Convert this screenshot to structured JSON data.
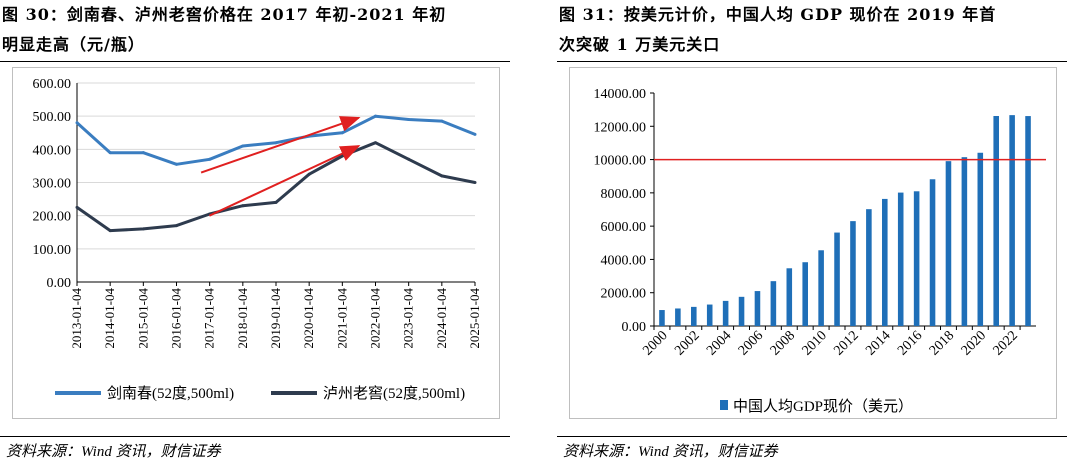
{
  "left_panel": {
    "title_line1": "图 30：剑南春、泸州老窖价格在 2017 年初-2021 年初",
    "title_line2": "明显走高（元/瓶）",
    "source": "资料来源：Wind 资讯，财信证券"
  },
  "right_panel": {
    "title_line1": "图 31：按美元计价，中国人均 GDP 现价在 2019 年首",
    "title_line2": "次突破 1 万美元关口",
    "source": "资料来源：Wind 资讯，财信证券"
  },
  "chart_data": [
    {
      "type": "line",
      "title": "",
      "ylim": [
        0,
        600
      ],
      "yticks": [
        "0.00",
        "100.00",
        "200.00",
        "300.00",
        "400.00",
        "500.00",
        "600.00"
      ],
      "x": [
        "2013-01-04",
        "2014-01-04",
        "2015-01-04",
        "2016-01-04",
        "2017-01-04",
        "2018-01-04",
        "2019-01-04",
        "2020-01-04",
        "2021-01-04",
        "2022-01-04",
        "2023-01-04",
        "2024-01-04",
        "2025-01-04"
      ],
      "grid": true,
      "legend_position": "bottom",
      "series": [
        {
          "name": "剑南春(52度,500ml)",
          "color": "#3a7dc0",
          "values": [
            480,
            390,
            390,
            355,
            370,
            410,
            420,
            440,
            450,
            500,
            490,
            485,
            445
          ]
        },
        {
          "name": "泸州老窖(52度,500ml)",
          "color": "#2e3b4e",
          "values": [
            225,
            155,
            160,
            170,
            205,
            230,
            240,
            325,
            380,
            420,
            370,
            320,
            300
          ]
        }
      ],
      "annotations": [
        {
          "type": "arrow",
          "from": [
            "2016-10-01",
            330
          ],
          "to": [
            "2021-07-01",
            495
          ],
          "color": "#e02020"
        },
        {
          "type": "arrow",
          "from": [
            "2017-01-01",
            200
          ],
          "to": [
            "2021-07-01",
            410
          ],
          "color": "#e02020"
        }
      ]
    },
    {
      "type": "bar",
      "title": "",
      "categories": [
        "2000",
        "2001",
        "2002",
        "2003",
        "2004",
        "2005",
        "2006",
        "2007",
        "2008",
        "2009",
        "2010",
        "2011",
        "2012",
        "2013",
        "2014",
        "2015",
        "2016",
        "2017",
        "2018",
        "2019",
        "2020",
        "2021",
        "2022",
        "2023"
      ],
      "xtick_labels": [
        "2000",
        "2002",
        "2004",
        "2006",
        "2008",
        "2010",
        "2012",
        "2014",
        "2016",
        "2018",
        "2020",
        "2022"
      ],
      "ylim": [
        0,
        14000
      ],
      "yticks": [
        "0.00",
        "2000.00",
        "4000.00",
        "6000.00",
        "8000.00",
        "10000.00",
        "12000.00",
        "14000.00"
      ],
      "series": [
        {
          "name": "中国人均GDP现价（美元）",
          "color": "#1f6fb8",
          "values": [
            959,
            1053,
            1149,
            1289,
            1509,
            1753,
            2099,
            2694,
            3468,
            3832,
            4550,
            5614,
            6301,
            7020,
            7636,
            8016,
            8094,
            8817,
            9905,
            10144,
            10409,
            12618,
            12670,
            12614
          ]
        }
      ],
      "reference_line": {
        "value": 10000,
        "color": "#e02020"
      },
      "legend_position": "bottom"
    }
  ]
}
